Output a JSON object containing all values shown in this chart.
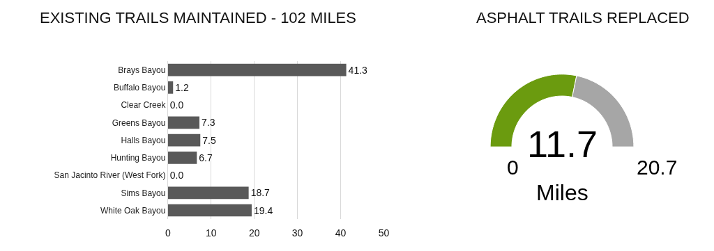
{
  "chart_data": [
    {
      "type": "bar",
      "orientation": "horizontal",
      "title": "EXISTING TRAILS MAINTAINED - 102 MILES",
      "categories": [
        "Brays Bayou",
        "Buffalo Bayou",
        "Clear Creek",
        "Greens Bayou",
        "Halls Bayou",
        "Hunting Bayou",
        "San Jacinto River (West Fork)",
        "Sims Bayou",
        "White Oak Bayou"
      ],
      "values": [
        41.3,
        1.2,
        0.0,
        7.3,
        7.5,
        6.7,
        0.0,
        18.7,
        19.4
      ],
      "value_labels": [
        "41.3",
        "1.2",
        "0.0",
        "7.3",
        "7.5",
        "6.7",
        "0.0",
        "18.7",
        "19.4"
      ],
      "color": "#595959",
      "xlim": [
        0,
        50
      ],
      "xticks": [
        0,
        10,
        20,
        30,
        40,
        50
      ],
      "grid": "x"
    },
    {
      "type": "donut",
      "title": "ASPHALT TRAILS REPLACED",
      "categories": [
        null,
        null
      ],
      "values": [
        11.7,
        9.0
      ],
      "colors": [
        "#6b9b0f",
        "#a6a6a6"
      ],
      "value_labels": [
        "11.7",
        null
      ],
      "annotations": [
        "0",
        "20.7",
        "Miles"
      ]
    }
  ]
}
